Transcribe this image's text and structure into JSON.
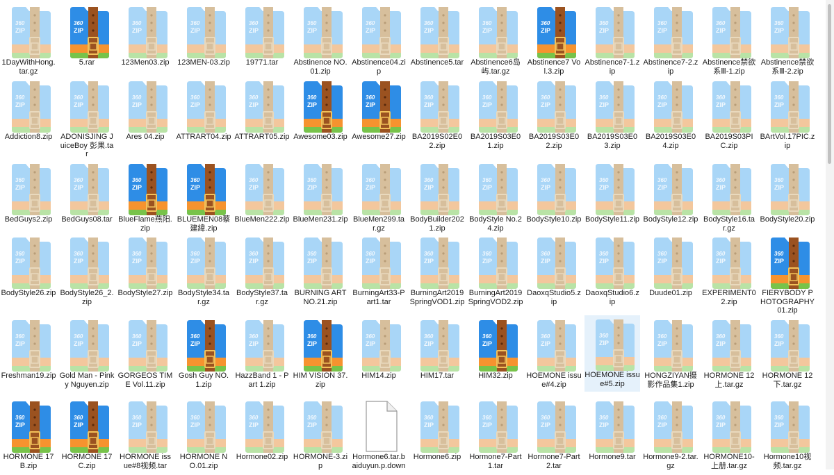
{
  "colors": {
    "pale_folder": "#a9d6f7",
    "bright_folder": "#2e8de6",
    "zipper_pale": "#d7bf9c",
    "zipper_bright": "#9b5220",
    "bottom_pale_orange": "#f3c79d",
    "bottom_pale_green": "#b9e3a6",
    "bottom_bright_orange": "#f6932f",
    "bottom_bright_green": "#78c34a",
    "selection": "#e5f1fb"
  },
  "icon_text": {
    "brand": "360",
    "format": "ZIP"
  },
  "files": [
    {
      "name": "1DayWithHong.tar.gz",
      "icon": "archive-pale"
    },
    {
      "name": "5.rar",
      "icon": "archive-bright"
    },
    {
      "name": "123Men03.zip",
      "icon": "archive-pale"
    },
    {
      "name": "123MEN-03.zip",
      "icon": "archive-pale"
    },
    {
      "name": "19771.tar",
      "icon": "archive-pale"
    },
    {
      "name": "Abstinence NO.01.zip",
      "icon": "archive-pale"
    },
    {
      "name": "Abstinence04.zip",
      "icon": "archive-pale"
    },
    {
      "name": "Abstinence5.tar",
      "icon": "archive-pale"
    },
    {
      "name": "Abstinence6岛屿.tar.gz",
      "icon": "archive-pale"
    },
    {
      "name": "Abstinence7 Vol.3.zip",
      "icon": "archive-bright"
    },
    {
      "name": "Abstinence7-1.zip",
      "icon": "archive-pale"
    },
    {
      "name": "Abstinence7-2.zip",
      "icon": "archive-pale"
    },
    {
      "name": "Abstinence禁欲系Ⅲ-1.zip",
      "icon": "archive-pale"
    },
    {
      "name": "Abstinence禁欲系Ⅲ-2.zip",
      "icon": "archive-pale"
    },
    {
      "name": "Addiction8.zip",
      "icon": "archive-pale"
    },
    {
      "name": "ADONISJING JuiceBoy 彭果.tar",
      "icon": "archive-pale"
    },
    {
      "name": "Ares 04.zip",
      "icon": "archive-pale"
    },
    {
      "name": "ATTRART04.zip",
      "icon": "archive-pale"
    },
    {
      "name": "ATTRART05.zip",
      "icon": "archive-pale"
    },
    {
      "name": "Awesome03.zip",
      "icon": "archive-bright"
    },
    {
      "name": "Awesome27.zip",
      "icon": "archive-bright"
    },
    {
      "name": "BA2019S02E02.zip",
      "icon": "archive-pale"
    },
    {
      "name": "BA2019S03E01.zip",
      "icon": "archive-pale"
    },
    {
      "name": "BA2019S03E02.zip",
      "icon": "archive-pale"
    },
    {
      "name": "BA2019S03E03.zip",
      "icon": "archive-pale"
    },
    {
      "name": "BA2019S03E04.zip",
      "icon": "archive-pale"
    },
    {
      "name": "BA2019S03PIC.zip",
      "icon": "archive-pale"
    },
    {
      "name": "BArtVol.17PIC.zip",
      "icon": "archive-pale"
    },
    {
      "name": "BedGuys2.zip",
      "icon": "archive-pale"
    },
    {
      "name": "BedGuys08.tar",
      "icon": "archive-pale"
    },
    {
      "name": "BlueFlame燕阳.zip",
      "icon": "archive-bright"
    },
    {
      "name": "BLUEMEN08蔡建緯.zip",
      "icon": "archive-bright"
    },
    {
      "name": "BlueMen222.zip",
      "icon": "archive-pale"
    },
    {
      "name": "BlueMen231.zip",
      "icon": "archive-pale"
    },
    {
      "name": "BlueMen299.tar.gz",
      "icon": "archive-pale"
    },
    {
      "name": "BodyBuilder2021.zip",
      "icon": "archive-pale"
    },
    {
      "name": "BodyStyle No.24.zip",
      "icon": "archive-pale"
    },
    {
      "name": "BodyStyle10.zip",
      "icon": "archive-pale"
    },
    {
      "name": "BodyStyle11.zip",
      "icon": "archive-pale"
    },
    {
      "name": "BodyStyle12.zip",
      "icon": "archive-pale"
    },
    {
      "name": "BodyStyle16.tar.gz",
      "icon": "archive-pale"
    },
    {
      "name": "BodyStyle20.zip",
      "icon": "archive-pale"
    },
    {
      "name": "BodyStyle26.zip",
      "icon": "archive-pale"
    },
    {
      "name": "BodyStyle26_2.zip",
      "icon": "archive-pale"
    },
    {
      "name": "BodyStyle27.zip",
      "icon": "archive-pale"
    },
    {
      "name": "BodyStyle34.tar.gz",
      "icon": "archive-pale"
    },
    {
      "name": "BodyStyle37.tar.gz",
      "icon": "archive-pale"
    },
    {
      "name": "BURNING ART NO.21.zip",
      "icon": "archive-pale"
    },
    {
      "name": "BurningArt33-Part1.tar",
      "icon": "archive-pale"
    },
    {
      "name": "BurningArt2019SpringVOD1.zip",
      "icon": "archive-pale"
    },
    {
      "name": "BurningArt2019SpringVOD2.zip",
      "icon": "archive-pale"
    },
    {
      "name": "DaoxqStudio5.zip",
      "icon": "archive-pale"
    },
    {
      "name": "DaoxqStudio6.zip",
      "icon": "archive-pale"
    },
    {
      "name": "Duude01.zip",
      "icon": "archive-pale"
    },
    {
      "name": "EXPERIMENT02.zip",
      "icon": "archive-pale"
    },
    {
      "name": "FIERYBODY PHOTOGRAPHY01.zip",
      "icon": "archive-bright"
    },
    {
      "name": "Freshman19.zip",
      "icon": "archive-pale"
    },
    {
      "name": "Gold Man - Pinky Nguyen.zip",
      "icon": "archive-pale"
    },
    {
      "name": "GORGEOS TIME Vol.11.zip",
      "icon": "archive-pale"
    },
    {
      "name": "Gosh Guy NO.1.zip",
      "icon": "archive-bright"
    },
    {
      "name": "HazzBand 1 - Part 1.zip",
      "icon": "archive-pale"
    },
    {
      "name": "HIM VISION 37.zip",
      "icon": "archive-bright"
    },
    {
      "name": "HIM14.zip",
      "icon": "archive-pale"
    },
    {
      "name": "HIM17.tar",
      "icon": "archive-pale"
    },
    {
      "name": "HIM32.zip",
      "icon": "archive-bright"
    },
    {
      "name": "HOEMONE issue#4.zip",
      "icon": "archive-pale"
    },
    {
      "name": "HOEMONE issue#5.zip",
      "icon": "archive-pale",
      "selected": true
    },
    {
      "name": "HONGZIYAN摄影作品集1.zip",
      "icon": "archive-pale"
    },
    {
      "name": "HORMONE 12上.tar.gz",
      "icon": "archive-pale"
    },
    {
      "name": "HORMONE 12下.tar.gz",
      "icon": "archive-pale"
    },
    {
      "name": "HORMONE 17B.zip",
      "icon": "archive-bright"
    },
    {
      "name": "HORMONE 17C.zip",
      "icon": "archive-bright"
    },
    {
      "name": "HORMONE issue#8视频.tar",
      "icon": "archive-pale"
    },
    {
      "name": "HORMONE NO.01.zip",
      "icon": "archive-pale"
    },
    {
      "name": "Hormone02.zip",
      "icon": "archive-pale"
    },
    {
      "name": "HORMONE-3.zip",
      "icon": "archive-pale"
    },
    {
      "name": "Hormone6.tar.baiduyun.p.down",
      "icon": "blank-file"
    },
    {
      "name": "Hormone6.zip",
      "icon": "archive-pale"
    },
    {
      "name": "Hormone7-Part1.tar",
      "icon": "archive-pale"
    },
    {
      "name": "Hormone7-Part2.tar",
      "icon": "archive-pale"
    },
    {
      "name": "Hormone9.tar",
      "icon": "archive-pale"
    },
    {
      "name": "Hormone9-2.tar.gz",
      "icon": "archive-pale"
    },
    {
      "name": "HORMONE10-上册.tar.gz",
      "icon": "archive-pale"
    },
    {
      "name": "Hormone10视频.tar.gz",
      "icon": "archive-pale"
    }
  ]
}
